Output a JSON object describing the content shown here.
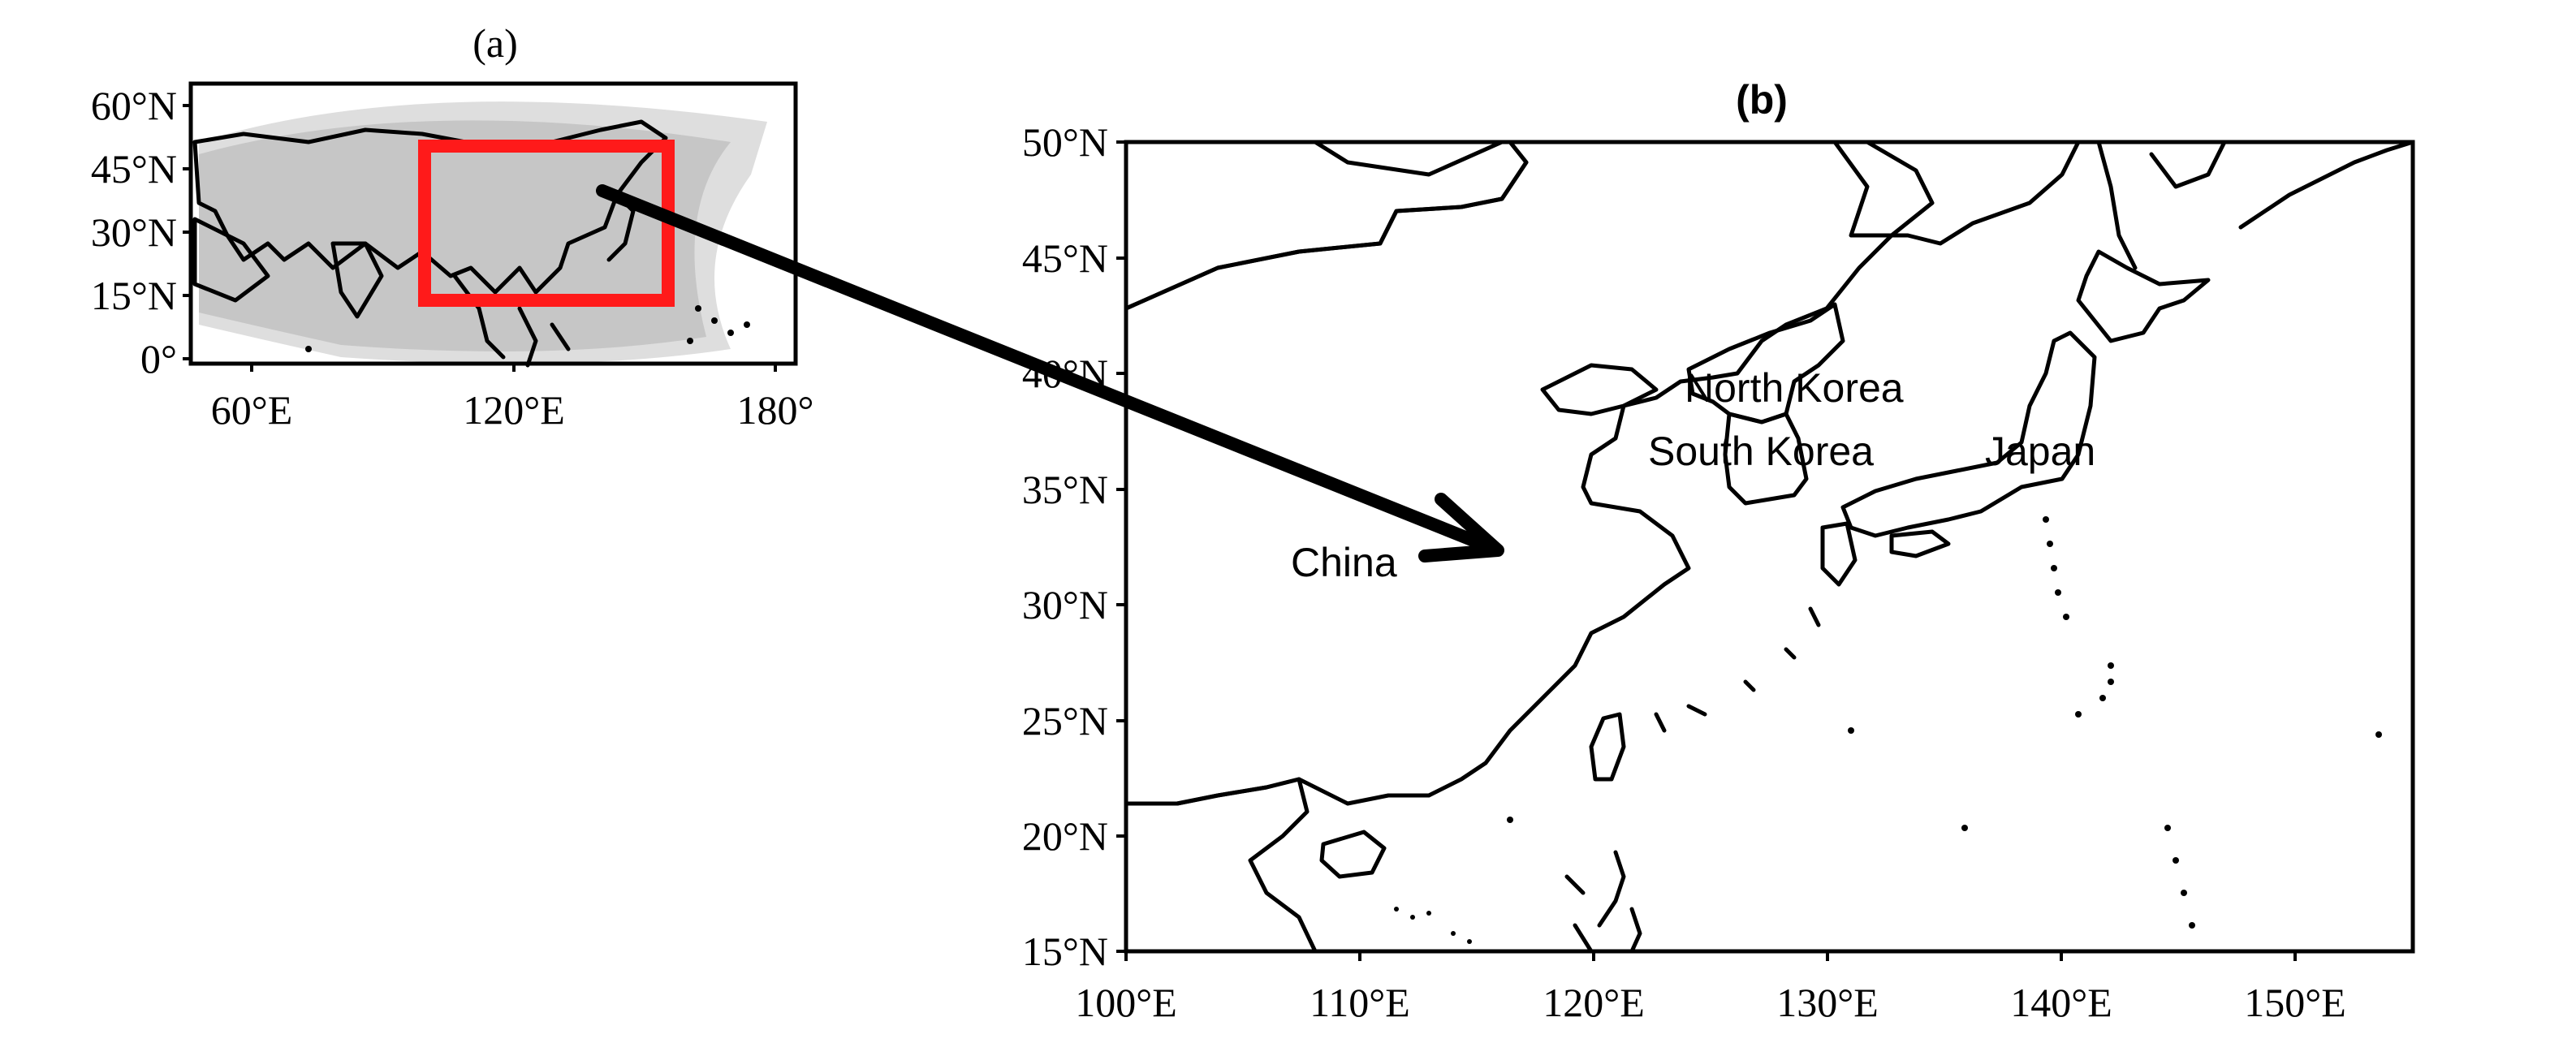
{
  "panel_a": {
    "title": "(a)",
    "lat_ticks": [
      "60°N",
      "45°N",
      "30°N",
      "15°N",
      "0°"
    ],
    "lon_ticks": [
      "60°E",
      "120°E",
      "180°"
    ],
    "highlight_color": "#ff1a1a",
    "domain_color": "#c8c8c8"
  },
  "panel_b": {
    "title": "(b)",
    "lat_ticks": [
      "50°N",
      "45°N",
      "40°N",
      "35°N",
      "30°N",
      "25°N",
      "20°N",
      "15°N"
    ],
    "lon_ticks": [
      "100°E",
      "110°E",
      "120°E",
      "130°E",
      "140°E",
      "150°E"
    ],
    "countries": [
      {
        "name": "China",
        "color": "#ffb6c1"
      },
      {
        "name": "North Korea",
        "color": "#8ee5ee"
      },
      {
        "name": "South Korea",
        "color": "#b3ee3a"
      },
      {
        "name": "Japan",
        "color": "#f5f5dc"
      }
    ]
  }
}
